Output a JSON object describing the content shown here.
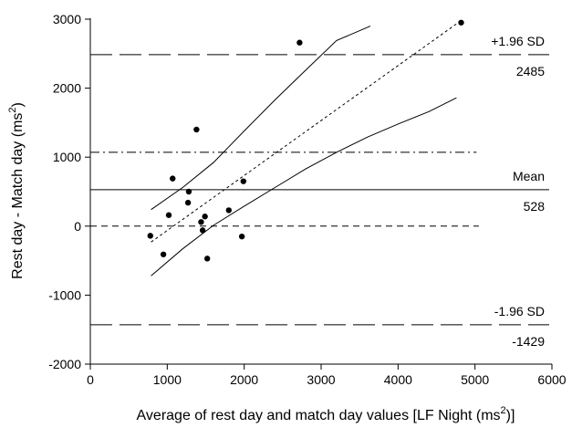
{
  "chart_data": {
    "type": "scatter",
    "title": "",
    "xlabel": "Average of rest day and match day values [LF Night (ms",
    "xlabel_sup": "2",
    "xlabel_tail": ")]",
    "ylabel": "Rest day - Match day (ms",
    "ylabel_sup": "2",
    "ylabel_tail": ")",
    "xlim": [
      0,
      6000
    ],
    "ylim": [
      -2000,
      3000
    ],
    "x_ticks": [
      0,
      1000,
      2000,
      3000,
      4000,
      5000,
      6000
    ],
    "y_ticks": [
      -2000,
      -1000,
      0,
      1000,
      2000,
      3000
    ],
    "x_tick_labels": [
      "0",
      "1000",
      "2000",
      "3000",
      "4000",
      "5000",
      "6000"
    ],
    "y_tick_labels": [
      "-2000",
      "-1000",
      "0",
      "1000",
      "2000",
      "3000"
    ],
    "grid": false,
    "points": [
      {
        "x": 780,
        "y": -140
      },
      {
        "x": 950,
        "y": -410
      },
      {
        "x": 1020,
        "y": 160
      },
      {
        "x": 1070,
        "y": 690
      },
      {
        "x": 1270,
        "y": 340
      },
      {
        "x": 1280,
        "y": 500
      },
      {
        "x": 1380,
        "y": 1400
      },
      {
        "x": 1440,
        "y": 60
      },
      {
        "x": 1460,
        "y": -60
      },
      {
        "x": 1490,
        "y": 140
      },
      {
        "x": 1520,
        "y": -470
      },
      {
        "x": 1800,
        "y": 230
      },
      {
        "x": 1970,
        "y": -150
      },
      {
        "x": 1990,
        "y": 650
      },
      {
        "x": 2720,
        "y": 2660
      },
      {
        "x": 4820,
        "y": 2950
      }
    ],
    "regression_line": {
      "x": [
        790,
        4820
      ],
      "y": [
        -230,
        2980
      ]
    },
    "ci_upper": {
      "x": [
        790,
        1200,
        1600,
        2000,
        2400,
        2800,
        3200,
        3640
      ],
      "y": [
        240,
        560,
        920,
        1380,
        1830,
        2260,
        2690,
        2900
      ]
    },
    "ci_lower": {
      "x": [
        790,
        1200,
        1600,
        2000,
        2400,
        2800,
        3200,
        3600,
        4000,
        4400,
        4760
      ],
      "y": [
        -720,
        -330,
        10,
        290,
        560,
        830,
        1070,
        1290,
        1480,
        1660,
        1860
      ]
    },
    "reference_lines": [
      {
        "name": "mean",
        "y": 528,
        "style": "solid",
        "label": "Mean",
        "value_label": "528"
      },
      {
        "name": "upper-loa",
        "y": 2485,
        "style": "long-dash",
        "label": "+1.96 SD",
        "value_label": "2485"
      },
      {
        "name": "lower-loa",
        "y": -1429,
        "style": "long-dash",
        "label": "-1.96 SD",
        "value_label": "-1429"
      },
      {
        "name": "zero",
        "y": 0,
        "style": "dash",
        "label": "",
        "value_label": ""
      },
      {
        "name": "dash-dot",
        "y": 1070,
        "style": "dash-dot",
        "label": "",
        "value_label": ""
      }
    ],
    "colors": {
      "ink": "#000000",
      "background": "#ffffff"
    }
  }
}
